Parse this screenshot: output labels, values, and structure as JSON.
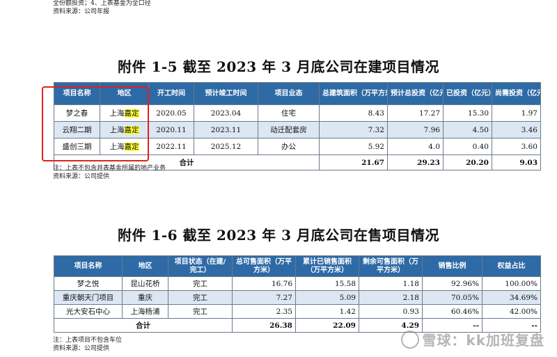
{
  "top_notes": [
    "全份额投资；4、上表基金为全口径",
    "资料来源：公司年报"
  ],
  "table1": {
    "title": "附件 1-5   截至 2023 年 3 月底公司在建项目情况",
    "headers": [
      "项目名称",
      "地区",
      "开工时间",
      "预计竣工时间",
      "项目业态",
      "总建筑面积（万平方米）",
      "预计总投资（亿元）",
      "已投资（亿元）",
      "尚需投资（亿元）"
    ],
    "rows": [
      {
        "name": "梦之春",
        "region_a": "上海",
        "region_b": "嘉定",
        "start": "2020.05",
        "end": "2023.04",
        "type": "住宅",
        "area": "8.43",
        "total": "17.27",
        "invested": "15.30",
        "remaining": "1.97"
      },
      {
        "name": "云翔二期",
        "region_a": "上海",
        "region_b": "嘉定",
        "start": "2020.11",
        "end": "2023.11",
        "type": "动迁配套房",
        "area": "7.32",
        "total": "7.96",
        "invested": "4.50",
        "remaining": "3.46"
      },
      {
        "name": "盛创三期",
        "region_a": "上海",
        "region_b": "嘉定",
        "start": "2022.11",
        "end": "2025.12",
        "type": "办公",
        "area": "5.92",
        "total": "4.0",
        "invested": "0.40",
        "remaining": "3.60"
      }
    ],
    "total": {
      "label": "合计",
      "area": "21.67",
      "total": "29.23",
      "invested": "20.20",
      "remaining": "9.03"
    },
    "notes": [
      "注：上表不包含并表基金所属的地产业务",
      "资料来源：公司提供"
    ]
  },
  "table2": {
    "title": "附件 1-6   截至 2023 年 3 月底公司在售项目情况",
    "headers": [
      "项目名称",
      "地区",
      "项目状态（在建/完工）",
      "总可售面积（万平方米）",
      "累计已销售面积（万平方米）",
      "剩余可售面积（万平方米）",
      "销售比例",
      "权益占比"
    ],
    "rows": [
      {
        "name": "梦之悦",
        "region": "昆山花桥",
        "status": "完工",
        "saleable": "16.76",
        "sold": "15.58",
        "remaining": "1.18",
        "ratio": "92.96%",
        "equity": "100.00%"
      },
      {
        "name": "重庆朝天门项目",
        "region": "重庆",
        "status": "完工",
        "saleable": "7.27",
        "sold": "5.09",
        "remaining": "2.18",
        "ratio": "70.05%",
        "equity": "34.69%"
      },
      {
        "name": "光大安石中心",
        "region": "上海杨浦",
        "status": "完工",
        "saleable": "2.35",
        "sold": "1.42",
        "remaining": "0.93",
        "ratio": "60.46%",
        "equity": "42.00%"
      }
    ],
    "total": {
      "label": "合计",
      "saleable": "26.38",
      "sold": "22.09",
      "remaining": "4.29",
      "ratio": "--",
      "equity": "--"
    },
    "notes": [
      "注：上表项目不包含车位",
      "资料来源：公司提供"
    ]
  },
  "watermark": "雪球：kk加班复盘",
  "colors": {
    "header_bg": "#2e6aa6",
    "alt_row_bg": "#dce7f3",
    "highlight": "#ffff33",
    "annotation_box": "#e02020"
  }
}
